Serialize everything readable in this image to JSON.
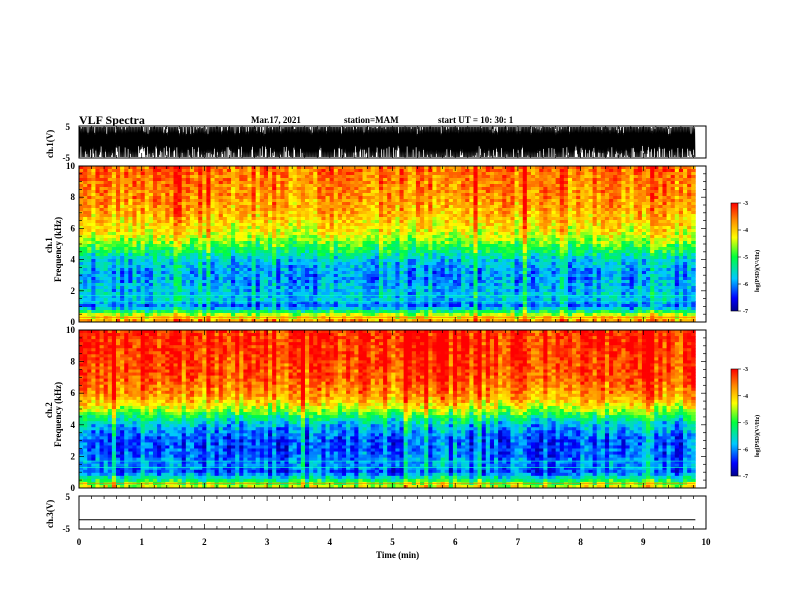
{
  "header": {
    "title": "VLF Spectra",
    "date": "Mar.17, 2021",
    "station": "station=MAM",
    "start": "start  UT =  10: 30: 1"
  },
  "labels": {
    "ch1_wave": "ch.1(V)",
    "ch1_spec_a": "ch.1",
    "ch1_spec_b": "Frequency (kHz)",
    "ch2_spec_a": "ch.2",
    "ch2_spec_b": "Frequency (kHz)",
    "ch3_wave": "ch.3(V)",
    "xlabel": "Time  (min)",
    "cbar": "log(PSD)(V²/Hz)"
  },
  "chart_data": [
    {
      "type": "line",
      "panel": "ch1-waveform",
      "ylabel": "ch.1(V)",
      "ylim": [
        -5,
        5
      ],
      "yticks": [
        "5",
        "-5"
      ],
      "xlim": [
        0,
        10
      ],
      "data_extent_min": 9.83,
      "description_values": {
        "typical_range": [
          -5,
          5
        ]
      }
    },
    {
      "type": "heatmap",
      "panel": "ch1-spectrogram",
      "ylabel": "ch.1 Frequency (kHz)",
      "ylim": [
        0,
        10
      ],
      "yticks": [
        "0",
        "2",
        "4",
        "6",
        "8",
        "10"
      ],
      "xlim": [
        0,
        10
      ],
      "colorbar": {
        "label": "log(PSD)(V²/Hz)",
        "range": [
          -7,
          -3
        ],
        "ticks": [
          "-3",
          "-4",
          "-5",
          "-6",
          "-7"
        ]
      },
      "profile_khz": [
        0,
        0.5,
        1,
        1.5,
        2,
        3,
        4,
        4.5,
        5,
        5.5,
        6,
        7,
        8,
        9,
        10
      ],
      "profile_log_psd": [
        -3.6,
        -4.6,
        -6.2,
        -5.7,
        -5.8,
        -6.0,
        -5.7,
        -5.2,
        -4.8,
        -4.4,
        -4.2,
        -3.9,
        -3.7,
        -3.6,
        -3.5
      ]
    },
    {
      "type": "heatmap",
      "panel": "ch2-spectrogram",
      "ylabel": "ch.2 Frequency (kHz)",
      "ylim": [
        0,
        10
      ],
      "yticks": [
        "0",
        "2",
        "4",
        "6",
        "8",
        "10"
      ],
      "xlim": [
        0,
        10
      ],
      "colorbar": {
        "label": "log(PSD)(V²/Hz)",
        "range": [
          -7,
          -3
        ],
        "ticks": [
          "-3",
          "-4",
          "-5",
          "-6",
          "-7"
        ]
      },
      "profile_khz": [
        0,
        0.5,
        1,
        1.5,
        2,
        3,
        4,
        4.5,
        5,
        5.5,
        6,
        7,
        8,
        9,
        10
      ],
      "profile_log_psd": [
        -4.2,
        -5.2,
        -6.3,
        -6.0,
        -6.2,
        -6.3,
        -5.8,
        -5.2,
        -4.5,
        -4.0,
        -3.7,
        -3.4,
        -3.3,
        -3.2,
        -3.2
      ]
    },
    {
      "type": "line",
      "panel": "ch3-waveform",
      "ylabel": "ch.3(V)",
      "ylim": [
        -5,
        5
      ],
      "yticks": [
        "5",
        "-5"
      ],
      "xlim": [
        0,
        10
      ],
      "x": [
        0,
        9.83
      ],
      "y": [
        -2.2,
        -2.2
      ]
    }
  ],
  "xaxis": {
    "label": "Time  (min)",
    "ticks": [
      "0",
      "1",
      "2",
      "3",
      "4",
      "5",
      "6",
      "7",
      "8",
      "9",
      "10"
    ]
  }
}
